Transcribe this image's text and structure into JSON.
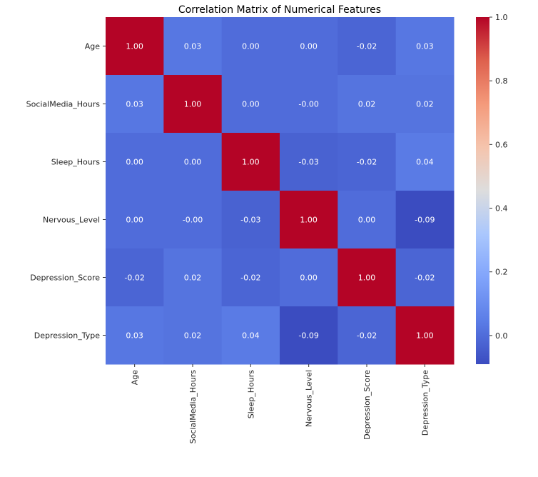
{
  "chart_data": {
    "type": "heatmap",
    "title": "Correlation Matrix of Numerical Features",
    "row_labels": [
      "Age",
      "SocialMedia_Hours",
      "Sleep_Hours",
      "Nervous_Level",
      "Depression_Score",
      "Depression_Type"
    ],
    "col_labels": [
      "Age",
      "SocialMedia_Hours",
      "Sleep_Hours",
      "Nervous_Level",
      "Depression_Score",
      "Depression_Type"
    ],
    "values": [
      [
        1.0,
        0.03,
        0.0,
        0.0,
        -0.02,
        0.03
      ],
      [
        0.03,
        1.0,
        0.0,
        -0.0,
        0.02,
        0.02
      ],
      [
        0.0,
        0.0,
        1.0,
        -0.03,
        -0.02,
        0.04
      ],
      [
        0.0,
        -0.0,
        -0.03,
        1.0,
        0.0,
        -0.09
      ],
      [
        -0.02,
        0.02,
        -0.02,
        0.0,
        1.0,
        -0.02
      ],
      [
        0.03,
        0.02,
        0.04,
        -0.09,
        -0.02,
        1.0
      ]
    ],
    "cell_labels": [
      [
        "1.00",
        "0.03",
        "0.00",
        "0.00",
        "-0.02",
        "0.03"
      ],
      [
        "0.03",
        "1.00",
        "0.00",
        "-0.00",
        "0.02",
        "0.02"
      ],
      [
        "0.00",
        "0.00",
        "1.00",
        "-0.03",
        "-0.02",
        "0.04"
      ],
      [
        "0.00",
        "-0.00",
        "-0.03",
        "1.00",
        "0.00",
        "-0.09"
      ],
      [
        "-0.02",
        "0.02",
        "-0.02",
        "0.00",
        "1.00",
        "-0.02"
      ],
      [
        "0.03",
        "0.02",
        "0.04",
        "-0.09",
        "-0.02",
        "1.00"
      ]
    ],
    "colormap": "coolwarm",
    "vmin": -0.09,
    "vmax": 1.0,
    "colorbar": {
      "ticks": [
        0.0,
        0.2,
        0.4,
        0.6,
        0.8,
        1.0
      ],
      "tick_labels": [
        "0.0",
        "0.2",
        "0.4",
        "0.6",
        "0.8",
        "1.0"
      ],
      "placement": "right"
    },
    "annotation_color": "#ffffff"
  }
}
